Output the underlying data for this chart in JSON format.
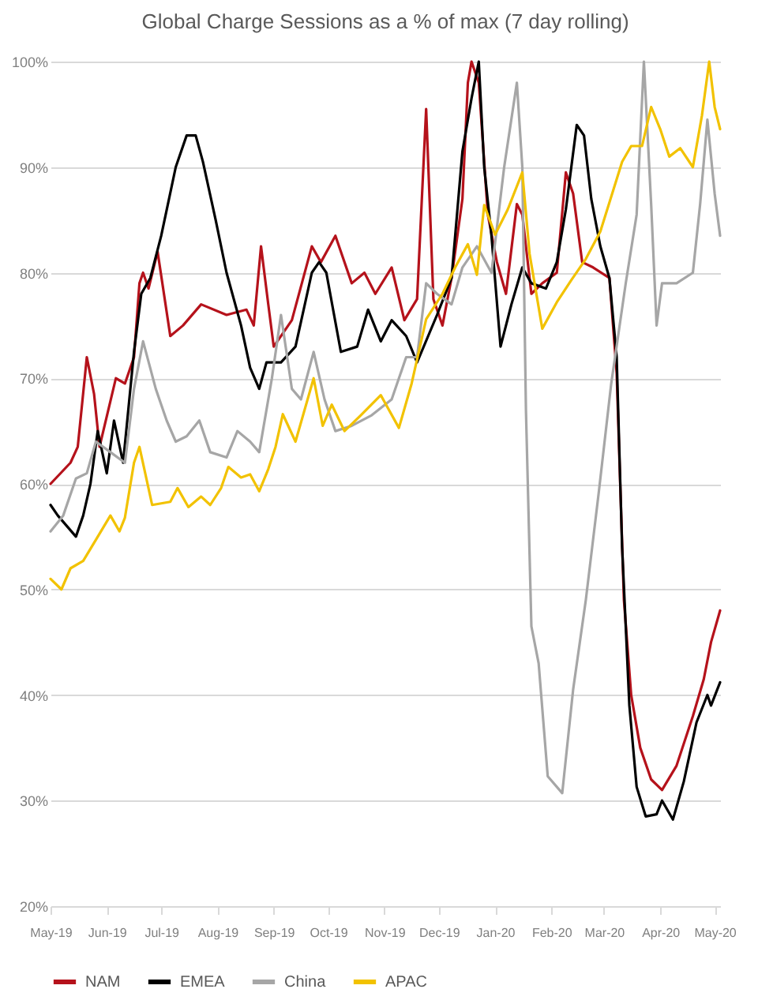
{
  "chart_data": {
    "type": "line",
    "title": "Global Charge Sessions as a % of max (7 day rolling)",
    "xlim": [
      "2019-05-01",
      "2020-05-04"
    ],
    "xticks": [
      {
        "value": "2019-05-01",
        "label": "May-19"
      },
      {
        "value": "2019-06-01",
        "label": "Jun-19"
      },
      {
        "value": "2019-07-01",
        "label": "Jul-19"
      },
      {
        "value": "2019-08-01",
        "label": "Aug-19"
      },
      {
        "value": "2019-09-01",
        "label": "Sep-19"
      },
      {
        "value": "2019-10-01",
        "label": "Oct-19"
      },
      {
        "value": "2019-11-01",
        "label": "Nov-19"
      },
      {
        "value": "2019-12-01",
        "label": "Dec-19"
      },
      {
        "value": "2020-01-01",
        "label": "Jan-20"
      },
      {
        "value": "2020-02-01",
        "label": "Feb-20"
      },
      {
        "value": "2020-03-01",
        "label": "Mar-20"
      },
      {
        "value": "2020-04-01",
        "label": "Apr-20"
      },
      {
        "value": "2020-05-01",
        "label": "May-20"
      }
    ],
    "ylim": [
      20,
      100
    ],
    "yticks": [
      {
        "value": 20,
        "label": "20%"
      },
      {
        "value": 30,
        "label": "30%"
      },
      {
        "value": 40,
        "label": "40%"
      },
      {
        "value": 50,
        "label": "50%"
      },
      {
        "value": 60,
        "label": "60%"
      },
      {
        "value": 70,
        "label": "70%"
      },
      {
        "value": 80,
        "label": "80%"
      },
      {
        "value": 90,
        "label": "90%"
      },
      {
        "value": 100,
        "label": "100%"
      }
    ],
    "grid": "y",
    "legend": "bottom",
    "series": [
      {
        "name": "NAM",
        "color": "#b5121b",
        "x": [
          "2019-05-01",
          "2019-05-12",
          "2019-05-16",
          "2019-05-21",
          "2019-05-25",
          "2019-05-28",
          "2019-06-06",
          "2019-06-11",
          "2019-06-16",
          "2019-06-19",
          "2019-06-21",
          "2019-06-24",
          "2019-06-29",
          "2019-07-06",
          "2019-07-13",
          "2019-07-23",
          "2019-08-06",
          "2019-08-17",
          "2019-08-21",
          "2019-08-25",
          "2019-08-29",
          "2019-09-01",
          "2019-09-11",
          "2019-09-22",
          "2019-09-27",
          "2019-10-05",
          "2019-10-14",
          "2019-10-21",
          "2019-10-27",
          "2019-11-05",
          "2019-11-12",
          "2019-11-19",
          "2019-11-24",
          "2019-11-28",
          "2019-12-03",
          "2019-12-08",
          "2019-12-14",
          "2019-12-17",
          "2019-12-19",
          "2019-12-23",
          "2019-12-28",
          "2020-01-02",
          "2020-01-07",
          "2020-01-13",
          "2020-01-16",
          "2020-01-21",
          "2020-01-27",
          "2020-02-04",
          "2020-02-09",
          "2020-02-13",
          "2020-02-18",
          "2020-02-24",
          "2020-03-04",
          "2020-03-08",
          "2020-03-12",
          "2020-03-16",
          "2020-03-21",
          "2020-03-27",
          "2020-04-02",
          "2020-04-10",
          "2020-04-19",
          "2020-04-25",
          "2020-04-29",
          "2020-05-04"
        ],
        "values": [
          60,
          62,
          63.5,
          72,
          68.5,
          63.5,
          70,
          69.5,
          72,
          79,
          80,
          78.5,
          82,
          74,
          75,
          77,
          76,
          76.5,
          75,
          82.5,
          77,
          73,
          75.5,
          82.5,
          81,
          83.5,
          79,
          80,
          78,
          80.5,
          75.5,
          77.5,
          95.5,
          77.5,
          75,
          79.5,
          87,
          98,
          100,
          98,
          85.5,
          81,
          78,
          86.5,
          85.5,
          78,
          79,
          80,
          89.5,
          87.5,
          81,
          80.5,
          79.5,
          70.5,
          49,
          40,
          35,
          32,
          31,
          33.3,
          38,
          41.5,
          45,
          48
        ]
      },
      {
        "name": "EMEA",
        "color": "#000000",
        "x": [
          "2019-05-01",
          "2019-05-05",
          "2019-05-15",
          "2019-05-19",
          "2019-05-23",
          "2019-05-27",
          "2019-06-01",
          "2019-06-05",
          "2019-06-10",
          "2019-06-16",
          "2019-06-20",
          "2019-06-25",
          "2019-07-01",
          "2019-07-09",
          "2019-07-15",
          "2019-07-20",
          "2019-07-24",
          "2019-07-31",
          "2019-08-06",
          "2019-08-14",
          "2019-08-19",
          "2019-08-24",
          "2019-08-28",
          "2019-09-05",
          "2019-09-13",
          "2019-09-22",
          "2019-09-26",
          "2019-09-30",
          "2019-10-08",
          "2019-10-17",
          "2019-10-23",
          "2019-10-30",
          "2019-11-05",
          "2019-11-13",
          "2019-11-19",
          "2019-11-30",
          "2019-12-08",
          "2019-12-14",
          "2019-12-19",
          "2019-12-23",
          "2019-12-26",
          "2019-12-30",
          "2020-01-04",
          "2020-01-10",
          "2020-01-16",
          "2020-01-21",
          "2020-01-29",
          "2020-02-04",
          "2020-02-09",
          "2020-02-15",
          "2020-02-19",
          "2020-02-23",
          "2020-02-28",
          "2020-03-04",
          "2020-03-08",
          "2020-03-11",
          "2020-03-15",
          "2020-03-19",
          "2020-03-24",
          "2020-03-30",
          "2020-04-02",
          "2020-04-08",
          "2020-04-14",
          "2020-04-21",
          "2020-04-27",
          "2020-04-29",
          "2020-05-04"
        ],
        "values": [
          58,
          57,
          55,
          57,
          60,
          65,
          61,
          66,
          62,
          72.5,
          78,
          79.5,
          83.5,
          90,
          93,
          93,
          90.5,
          85,
          80,
          75,
          71,
          69,
          71.5,
          71.5,
          73,
          80,
          81,
          80,
          72.5,
          73,
          76.5,
          73.5,
          75.5,
          74,
          71.5,
          76,
          79.5,
          91.5,
          96.5,
          100,
          90,
          83.5,
          73,
          77,
          80.5,
          79,
          78.5,
          81,
          86,
          94,
          93,
          87,
          82.5,
          79.5,
          72,
          54,
          39,
          31.3,
          28.5,
          28.7,
          30,
          28.2,
          31.8,
          37.4,
          40,
          39,
          41.2
        ]
      },
      {
        "name": "China",
        "color": "#a6a6a6",
        "x": [
          "2019-05-01",
          "2019-05-08",
          "2019-05-15",
          "2019-05-21",
          "2019-05-26",
          "2019-06-03",
          "2019-06-11",
          "2019-06-16",
          "2019-06-21",
          "2019-06-28",
          "2019-07-04",
          "2019-07-09",
          "2019-07-15",
          "2019-07-22",
          "2019-07-28",
          "2019-08-06",
          "2019-08-12",
          "2019-08-19",
          "2019-08-24",
          "2019-08-31",
          "2019-09-05",
          "2019-09-11",
          "2019-09-16",
          "2019-09-23",
          "2019-09-29",
          "2019-10-05",
          "2019-10-14",
          "2019-10-25",
          "2019-11-05",
          "2019-11-13",
          "2019-11-19",
          "2019-11-24",
          "2019-11-30",
          "2019-12-08",
          "2019-12-14",
          "2019-12-22",
          "2019-12-30",
          "2020-01-06",
          "2020-01-13",
          "2020-01-16",
          "2020-01-18",
          "2020-01-21",
          "2020-01-25",
          "2020-01-30",
          "2020-02-07",
          "2020-02-13",
          "2020-02-20",
          "2020-02-27",
          "2020-03-05",
          "2020-03-13",
          "2020-03-19",
          "2020-03-23",
          "2020-03-27",
          "2020-03-30",
          "2020-04-02",
          "2020-04-10",
          "2020-04-19",
          "2020-04-23",
          "2020-04-27",
          "2020-05-01",
          "2020-05-04"
        ],
        "values": [
          55.5,
          57,
          60.5,
          61,
          64,
          63,
          62,
          69,
          73.5,
          69,
          66,
          64,
          64.5,
          66,
          63,
          62.5,
          65,
          64,
          63,
          70,
          76,
          69,
          68,
          72.5,
          68,
          65,
          65.5,
          66.5,
          68,
          72,
          72,
          79,
          78,
          77,
          80.5,
          82.5,
          80,
          90,
          98,
          90,
          67,
          46.5,
          43,
          32.3,
          30.7,
          40.5,
          49,
          59,
          69.5,
          79,
          85.5,
          100,
          86.5,
          75,
          79,
          79,
          80,
          86.5,
          94.5,
          87.5,
          83.5
        ]
      },
      {
        "name": "APAC",
        "color": "#f2c200",
        "x": [
          "2019-05-01",
          "2019-05-07",
          "2019-05-12",
          "2019-05-19",
          "2019-05-26",
          "2019-06-03",
          "2019-06-08",
          "2019-06-11",
          "2019-06-16",
          "2019-06-19",
          "2019-06-26",
          "2019-07-06",
          "2019-07-10",
          "2019-07-16",
          "2019-07-23",
          "2019-07-28",
          "2019-08-03",
          "2019-08-07",
          "2019-08-14",
          "2019-08-19",
          "2019-08-24",
          "2019-08-29",
          "2019-09-02",
          "2019-09-06",
          "2019-09-13",
          "2019-09-23",
          "2019-09-28",
          "2019-10-03",
          "2019-10-10",
          "2019-10-19",
          "2019-10-30",
          "2019-11-09",
          "2019-11-16",
          "2019-11-24",
          "2019-12-03",
          "2019-12-10",
          "2019-12-17",
          "2019-12-22",
          "2019-12-26",
          "2020-01-01",
          "2020-01-08",
          "2020-01-16",
          "2020-01-20",
          "2020-01-27",
          "2020-02-04",
          "2020-02-12",
          "2020-02-20",
          "2020-02-28",
          "2020-03-11",
          "2020-03-16",
          "2020-03-22",
          "2020-03-27",
          "2020-04-01",
          "2020-04-06",
          "2020-04-12",
          "2020-04-19",
          "2020-04-24",
          "2020-04-28",
          "2020-05-01",
          "2020-05-04"
        ],
        "values": [
          51,
          50,
          52,
          52.7,
          54.7,
          57,
          55.5,
          56.8,
          62,
          63.5,
          58,
          58.3,
          59.6,
          57.8,
          58.8,
          58,
          59.6,
          61.6,
          60.6,
          60.9,
          59.3,
          61.4,
          63.5,
          66.6,
          64,
          70,
          65.5,
          67.5,
          65,
          66.5,
          68.4,
          65.3,
          69.5,
          75.6,
          78,
          80.5,
          82.7,
          79.8,
          86.4,
          83.6,
          86,
          89.5,
          81.8,
          74.7,
          77.2,
          79.3,
          81.3,
          83.9,
          90.5,
          92,
          92,
          95.7,
          93.6,
          91,
          91.8,
          90,
          94.9,
          100,
          95.7,
          93.6
        ]
      }
    ]
  }
}
